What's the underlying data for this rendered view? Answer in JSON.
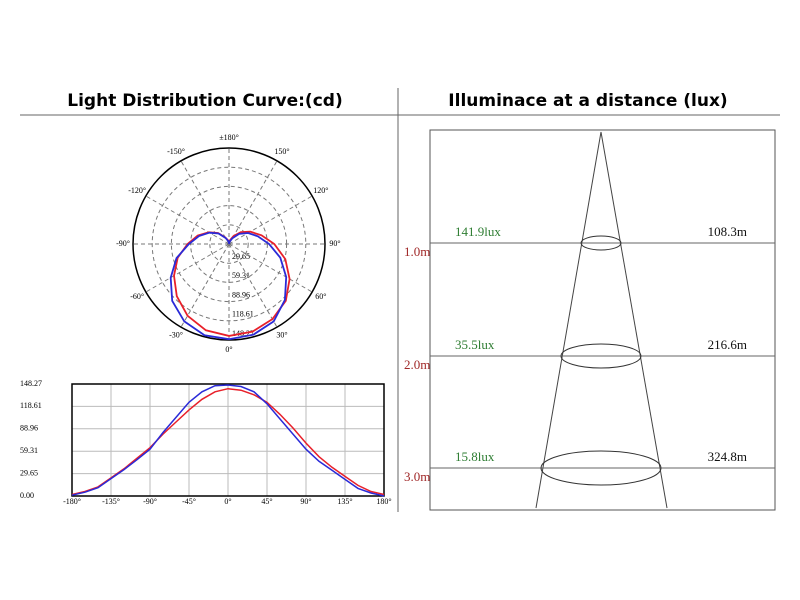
{
  "left_title": "Light Distribution Curve:(cd)",
  "right_title": "Illuminace at a distance (lux)",
  "chart_data": [
    {
      "type": "polar",
      "x": [
        -180,
        -165,
        -150,
        -135,
        -120,
        -105,
        -90,
        -75,
        -60,
        -45,
        -30,
        -15,
        0,
        15,
        30,
        45,
        60,
        75,
        90,
        105,
        120,
        135,
        150,
        165,
        180
      ],
      "rlim": [
        0,
        148.27
      ],
      "rticks": [
        29.65,
        59.31,
        88.96,
        118.61,
        148.27
      ],
      "xticks": [
        {
          "value": 0,
          "label": "0°"
        },
        {
          "value": 30,
          "label": "30°"
        },
        {
          "value": 60,
          "label": "60°"
        },
        {
          "value": 90,
          "label": "90°"
        },
        {
          "value": 120,
          "label": "120°"
        },
        {
          "value": 150,
          "label": "150°"
        },
        {
          "value": 180,
          "label": "±180°"
        },
        {
          "value": -150,
          "label": "-150°"
        },
        {
          "value": -120,
          "label": "-120°"
        },
        {
          "value": -90,
          "label": "-90°"
        },
        {
          "value": -60,
          "label": "-60°"
        },
        {
          "value": -30,
          "label": "-30°"
        }
      ],
      "grid": true,
      "series": [
        {
          "color": "#e8202a",
          "values": [
            2,
            6,
            12,
            24,
            36,
            50,
            64,
            82,
            98,
            114,
            128,
            138,
            142,
            140,
            134,
            124,
            108,
            90,
            70,
            52,
            38,
            26,
            14,
            6,
            2
          ]
        },
        {
          "color": "#2a2ad8",
          "values": [
            1,
            5,
            11,
            23,
            35,
            48,
            62,
            84,
            104,
            124,
            138,
            146,
            147,
            145,
            138,
            122,
            102,
            82,
            62,
            46,
            34,
            22,
            10,
            4,
            0
          ]
        }
      ]
    },
    {
      "type": "line",
      "x": [
        -180,
        -165,
        -150,
        -135,
        -120,
        -105,
        -90,
        -75,
        -60,
        -45,
        -30,
        -15,
        0,
        15,
        30,
        45,
        60,
        75,
        90,
        105,
        120,
        135,
        150,
        165,
        180
      ],
      "xlim": [
        -180,
        180
      ],
      "ylim": [
        0,
        148.27
      ],
      "xticks": [
        {
          "value": -180,
          "label": "-180°"
        },
        {
          "value": -135,
          "label": "-135°"
        },
        {
          "value": -90,
          "label": "-90°"
        },
        {
          "value": -45,
          "label": "-45°"
        },
        {
          "value": 0,
          "label": "0°"
        },
        {
          "value": 45,
          "label": "45°"
        },
        {
          "value": 90,
          "label": "90°"
        },
        {
          "value": 135,
          "label": "135°"
        },
        {
          "value": 180,
          "label": "180°"
        }
      ],
      "yticks": [
        {
          "value": 0,
          "label": "0.00"
        },
        29.65,
        59.31,
        88.96,
        118.61,
        148.27
      ],
      "grid": true,
      "series": [
        {
          "color": "#e8202a",
          "values": [
            2,
            6,
            12,
            24,
            36,
            50,
            64,
            82,
            98,
            114,
            128,
            138,
            142,
            140,
            134,
            124,
            108,
            90,
            70,
            52,
            38,
            26,
            14,
            6,
            2
          ]
        },
        {
          "color": "#2a2ad8",
          "values": [
            1,
            5,
            11,
            23,
            35,
            48,
            62,
            84,
            104,
            124,
            138,
            146,
            147,
            145,
            138,
            122,
            102,
            82,
            62,
            46,
            34,
            22,
            10,
            4,
            0
          ]
        }
      ]
    }
  ],
  "illuminance": {
    "rows": [
      {
        "distance": "1.0m",
        "lux": "141.9lux",
        "diameter": "108.3m"
      },
      {
        "distance": "2.0m",
        "lux": "35.5lux",
        "diameter": "216.6m"
      },
      {
        "distance": "3.0m",
        "lux": "15.8lux",
        "diameter": "324.8m"
      }
    ]
  }
}
